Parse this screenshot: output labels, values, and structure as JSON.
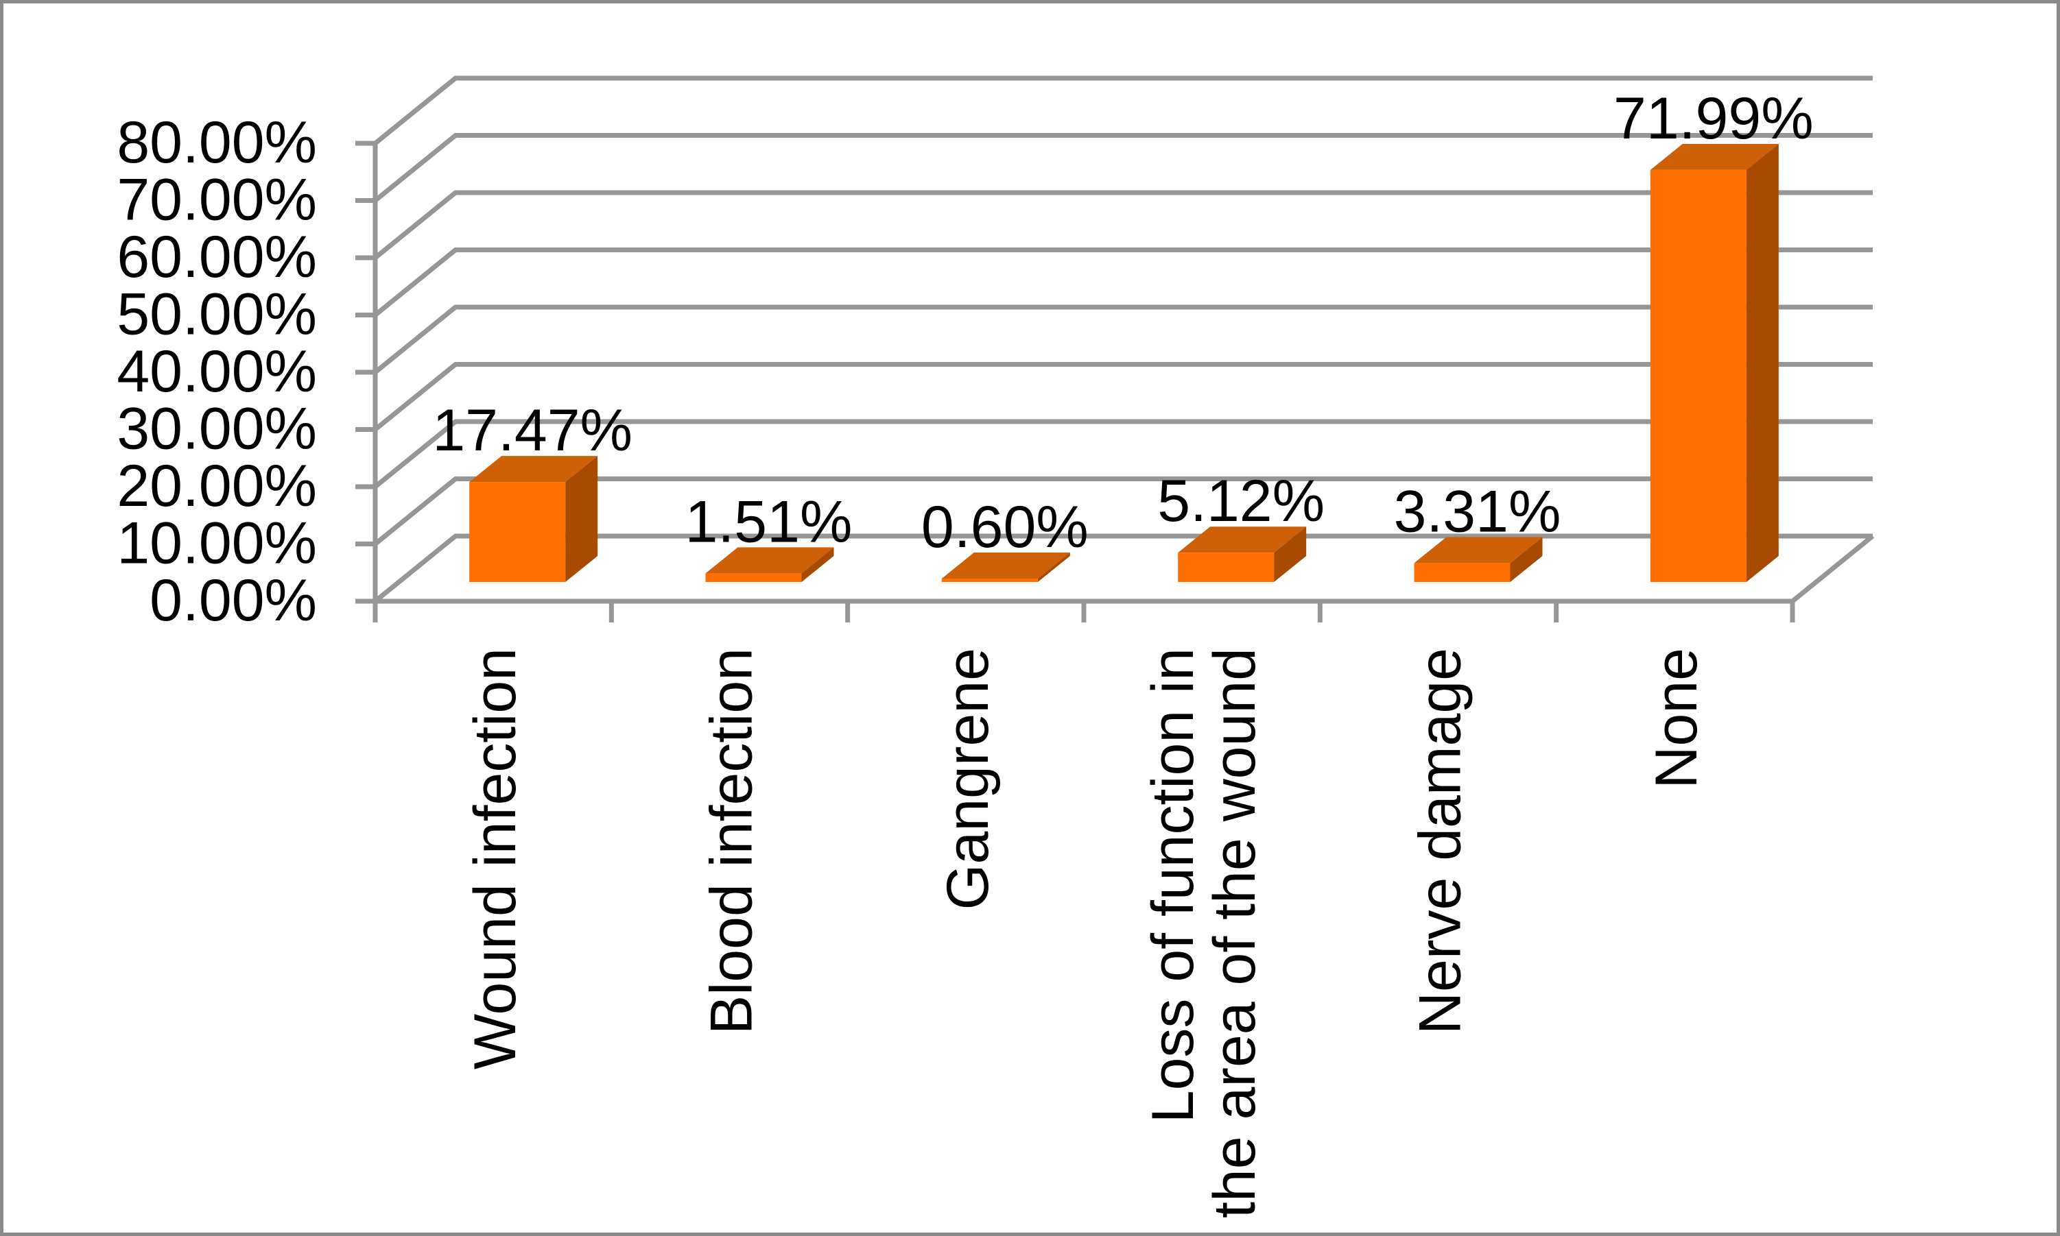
{
  "chart_data": {
    "type": "bar",
    "style": "3d-column",
    "title": "",
    "xlabel": "",
    "ylabel": "",
    "categories": [
      {
        "lines": [
          "Wound infection"
        ]
      },
      {
        "lines": [
          "Blood infection"
        ]
      },
      {
        "lines": [
          "Gangrene"
        ]
      },
      {
        "lines": [
          "Loss of function in",
          "the area of the wound"
        ]
      },
      {
        "lines": [
          "Nerve damage"
        ]
      },
      {
        "lines": [
          "None"
        ]
      }
    ],
    "values": [
      17.47,
      1.51,
      0.6,
      5.12,
      3.31,
      71.99
    ],
    "value_labels": [
      "17.47%",
      "1.51%",
      "0.60%",
      "5.12%",
      "3.31%",
      "71.99%"
    ],
    "y_axis": {
      "min": 0,
      "max": 80,
      "step": 10,
      "tick_labels": [
        "0.00%",
        "10.00%",
        "20.00%",
        "30.00%",
        "40.00%",
        "50.00%",
        "60.00%",
        "70.00%",
        "80.00%"
      ]
    },
    "legend": null,
    "grid": true,
    "colors": {
      "bar_front": "#FF6F00",
      "bar_top": "#CE6007",
      "bar_side": "#A64B00",
      "gridline": "#969696",
      "axis": "#969696",
      "text": "#000000",
      "background": "#FFFFFF",
      "frame_border": "#8A8A8A"
    }
  }
}
